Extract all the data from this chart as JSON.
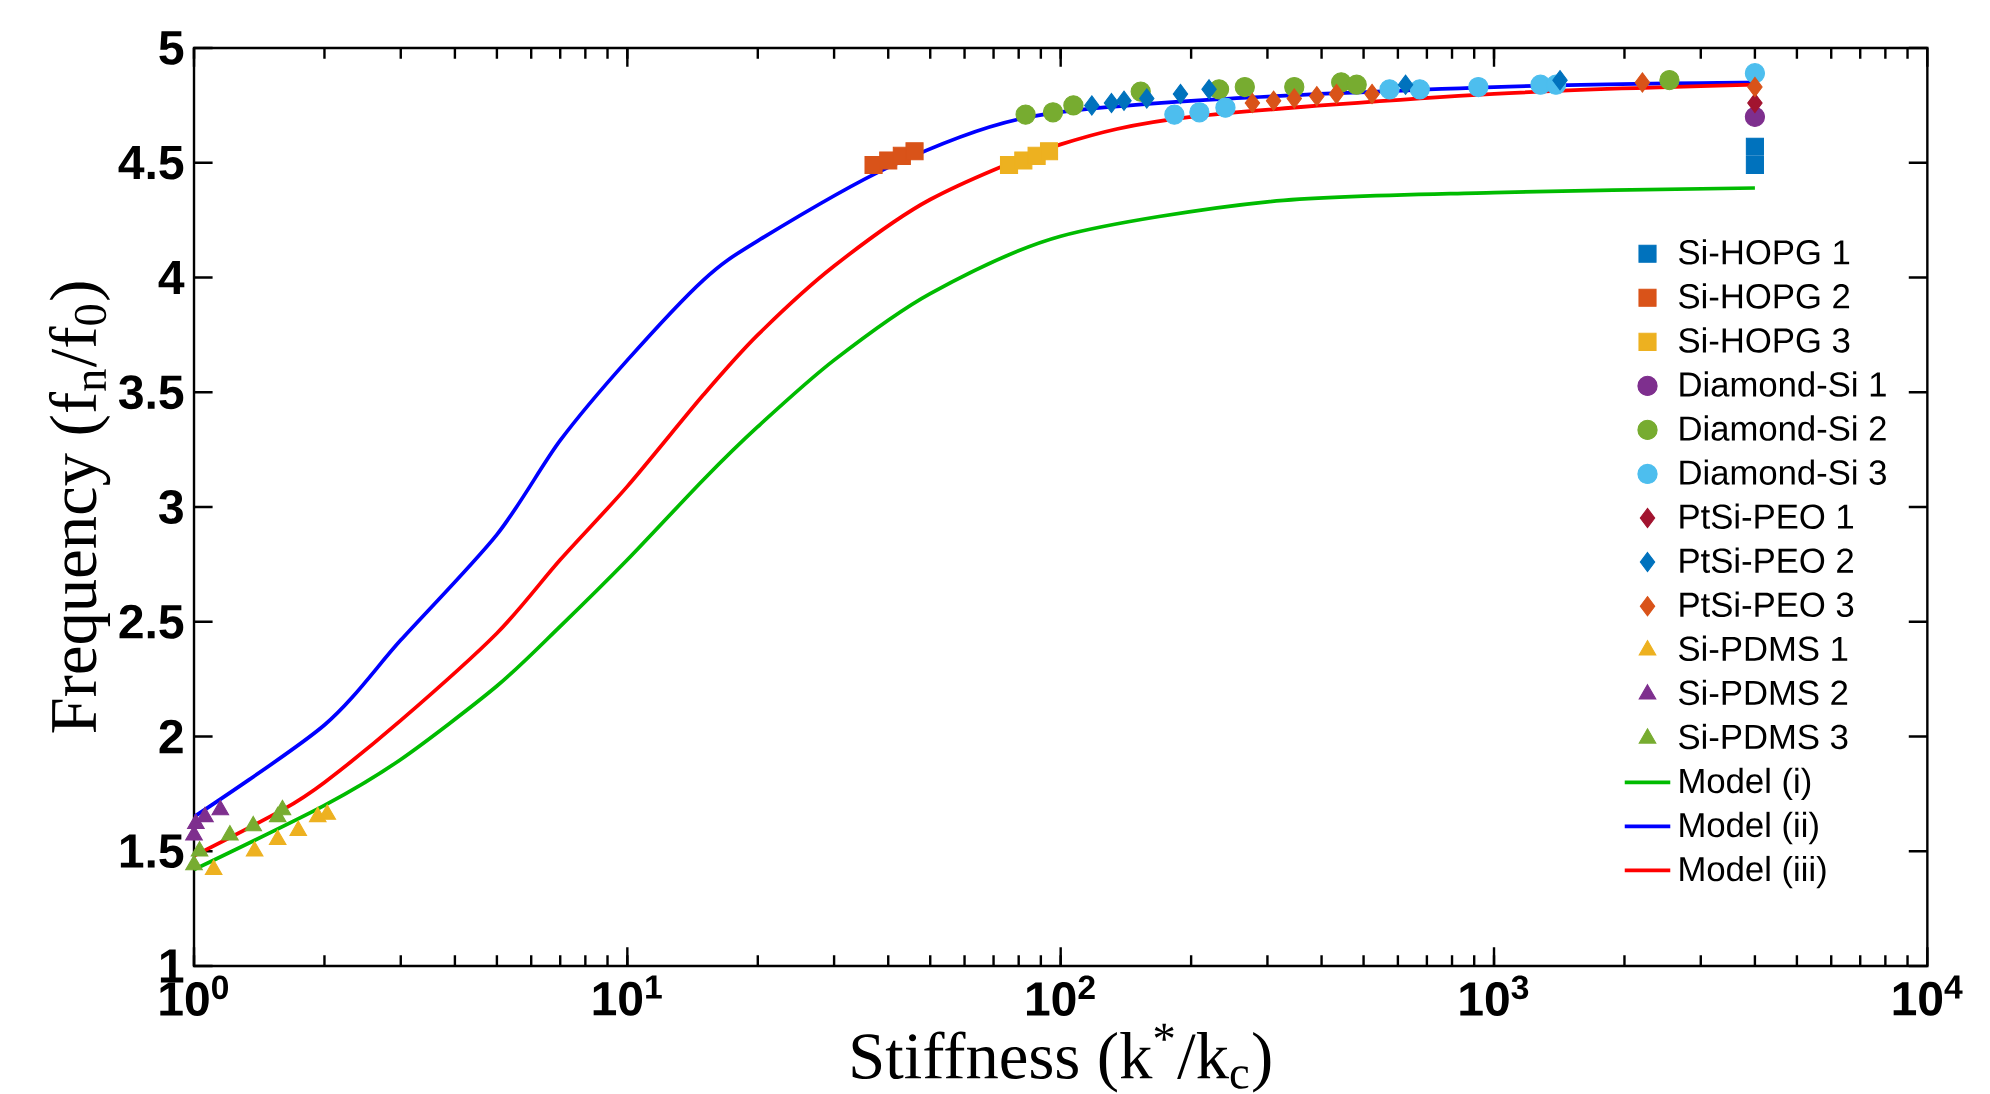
{
  "chart_data": {
    "type": "scatter",
    "xlabel": "Stiffness (k$^{*}$/k$_{c}$)",
    "ylabel": "Frequency (f$_{n}$/f$_{0}$)",
    "log": "x",
    "xlim": [
      1,
      10000
    ],
    "ylim": [
      1,
      5
    ],
    "xticks": [
      {
        "value": 1,
        "label": "10$^{0}$"
      },
      {
        "value": 10,
        "label": "10$^{1}$"
      },
      {
        "value": 100,
        "label": "10$^{2}$"
      },
      {
        "value": 1000,
        "label": "10$^{3}$"
      },
      {
        "value": 10000,
        "label": "10$^{4}$"
      }
    ],
    "yticks": [
      1,
      1.5,
      2,
      2.5,
      3,
      3.5,
      4,
      4.5,
      5
    ],
    "grid": false,
    "legend": "right",
    "series": [
      {
        "name": "Si-HOPG 1",
        "color": "#0072bd",
        "marker": "square",
        "x": [
          4000,
          4000
        ],
        "values": [
          4.49,
          4.57
        ]
      },
      {
        "name": "Si-HOPG 2",
        "color": "#d95319",
        "marker": "square",
        "x": [
          37,
          40,
          43,
          46
        ],
        "values": [
          4.49,
          4.51,
          4.53,
          4.55
        ]
      },
      {
        "name": "Si-HOPG 3",
        "color": "#edb120",
        "marker": "square",
        "x": [
          76,
          82,
          88,
          94
        ],
        "values": [
          4.49,
          4.51,
          4.53,
          4.55
        ]
      },
      {
        "name": "Diamond-Si 1",
        "color": "#7e2f8e",
        "marker": "circle",
        "x": [
          4000
        ],
        "values": [
          4.7
        ]
      },
      {
        "name": "Diamond-Si 2",
        "color": "#77ac30",
        "marker": "circle",
        "x": [
          83,
          96,
          107,
          153,
          232,
          266,
          346,
          444,
          482,
          2540
        ],
        "values": [
          4.71,
          4.72,
          4.75,
          4.81,
          4.82,
          4.83,
          4.83,
          4.85,
          4.84,
          4.86
        ]
      },
      {
        "name": "Diamond-Si 3",
        "color": "#4dbeee",
        "marker": "circle",
        "x": [
          183,
          209,
          240,
          574,
          674,
          920,
          1280,
          1390,
          4000
        ],
        "values": [
          4.71,
          4.72,
          4.74,
          4.82,
          4.82,
          4.83,
          4.84,
          4.84,
          4.89
        ]
      },
      {
        "name": "PtSi-PEO 1",
        "color": "#a2142f",
        "marker": "diamond",
        "x": [
          4000
        ],
        "values": [
          4.76
        ]
      },
      {
        "name": "PtSi-PEO 2",
        "color": "#0072bd",
        "marker": "diamond",
        "x": [
          118,
          131,
          140,
          158,
          189,
          220,
          625,
          1420
        ],
        "values": [
          4.75,
          4.76,
          4.77,
          4.78,
          4.8,
          4.82,
          4.84,
          4.86
        ]
      },
      {
        "name": "PtSi-PEO 3",
        "color": "#d95319",
        "marker": "diamond",
        "x": [
          277,
          310,
          346,
          390,
          433,
          523,
          2200,
          4000
        ],
        "values": [
          4.76,
          4.77,
          4.78,
          4.79,
          4.8,
          4.8,
          4.85,
          4.83
        ]
      },
      {
        "name": "Si-PDMS 1",
        "color": "#edb120",
        "marker": "triangle",
        "x": [
          1.11,
          1.38,
          1.56,
          1.74,
          1.93,
          2.03
        ],
        "values": [
          1.42,
          1.5,
          1.55,
          1.59,
          1.65,
          1.66
        ]
      },
      {
        "name": "Si-PDMS 2",
        "color": "#7e2f8e",
        "marker": "triangle",
        "x": [
          1.0,
          1.01,
          1.06,
          1.15
        ],
        "values": [
          1.57,
          1.62,
          1.65,
          1.68
        ]
      },
      {
        "name": "Si-PDMS 3",
        "color": "#77ac30",
        "marker": "triangle",
        "x": [
          1.0,
          1.03,
          1.21,
          1.37,
          1.56,
          1.6
        ],
        "values": [
          1.44,
          1.5,
          1.57,
          1.61,
          1.65,
          1.68
        ]
      },
      {
        "name": "Model (i)",
        "type": "line",
        "color": "#00bb00",
        "marker": "none",
        "line_style": "solid",
        "x": [
          1,
          2,
          3,
          5,
          7,
          10,
          15,
          20,
          30,
          50,
          100,
          300,
          1000,
          4000
        ],
        "values": [
          1.42,
          1.7,
          1.9,
          2.22,
          2.48,
          2.77,
          3.12,
          3.35,
          3.64,
          3.93,
          4.18,
          4.33,
          4.37,
          4.39
        ]
      },
      {
        "name": "Model (ii)",
        "type": "line",
        "color": "#0000ff",
        "marker": "none",
        "line_style": "solid",
        "x": [
          1,
          2,
          3,
          5,
          7,
          10,
          15,
          20,
          40,
          80,
          200,
          1000,
          4000
        ],
        "values": [
          1.65,
          2.05,
          2.42,
          2.88,
          3.29,
          3.64,
          3.99,
          4.16,
          4.48,
          4.69,
          4.77,
          4.83,
          4.85
        ]
      },
      {
        "name": "Model (iii)",
        "type": "line",
        "color": "#ff0000",
        "marker": "none",
        "line_style": "solid",
        "x": [
          1,
          1.6,
          2,
          3,
          5,
          7,
          10,
          15,
          20,
          30,
          50,
          100,
          200,
          1000,
          4000
        ],
        "values": [
          1.48,
          1.68,
          1.8,
          2.07,
          2.45,
          2.77,
          3.09,
          3.49,
          3.75,
          4.05,
          4.34,
          4.58,
          4.7,
          4.8,
          4.84
        ]
      }
    ]
  }
}
